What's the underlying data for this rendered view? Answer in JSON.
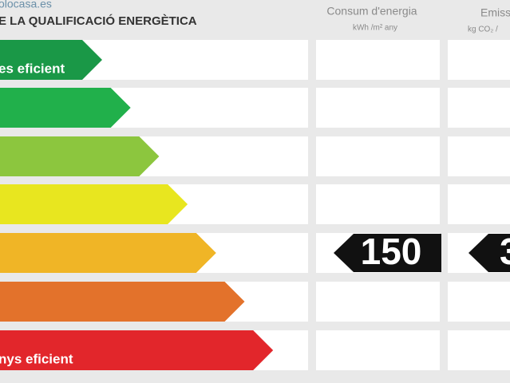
{
  "watermark": "olocasa.es",
  "title": "E LA QUALIFICACIÓ ENERGÈTICA",
  "columns": [
    {
      "header": "Consum d'energia",
      "unit": "kWh /m² any"
    },
    {
      "header": "Emiss",
      "unit": "kg CO₂ /"
    }
  ],
  "rows": [
    {
      "label": "es eficient",
      "color": "#1a9847"
    },
    {
      "label": null,
      "color": "#21b04b"
    },
    {
      "label": null,
      "color": "#8cc63e"
    },
    {
      "label": null,
      "color": "#e8e61f"
    },
    {
      "label": null,
      "color": "#f0b526"
    },
    {
      "label": null,
      "color": "#e3722b"
    },
    {
      "label": "nys eficient",
      "color": "#e2262b"
    }
  ],
  "rating_row": 4,
  "rating_values": [
    "150",
    "3"
  ]
}
